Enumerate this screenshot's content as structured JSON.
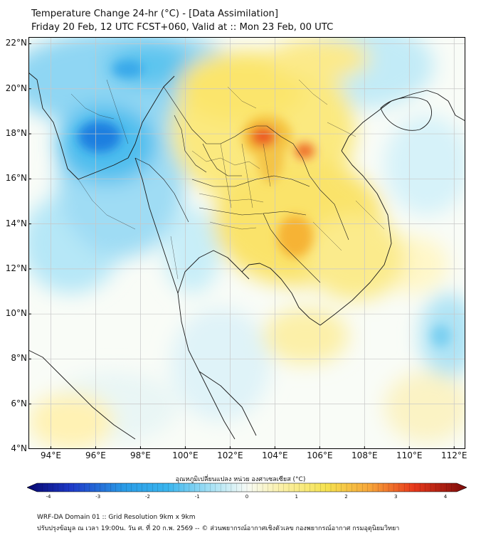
{
  "header": {
    "title_line1": "Temperature Change 24-hr (°C) - [Data Assimilation]",
    "title_line2": "Friday 20 Feb, 12 UTC FCST+060, Valid at :: Mon 23 Feb, 00 UTC"
  },
  "map": {
    "y_ticks": [
      "22°N",
      "20°N",
      "18°N",
      "16°N",
      "14°N",
      "12°N",
      "10°N",
      "8°N",
      "6°N",
      "4°N"
    ],
    "x_ticks": [
      "94°E",
      "96°E",
      "98°E",
      "100°E",
      "102°E",
      "104°E",
      "106°E",
      "108°E",
      "110°E",
      "112°E"
    ],
    "lon_range": [
      93,
      112.5
    ],
    "lat_range": [
      4,
      22.3
    ],
    "grid_lons": [
      94,
      96,
      98,
      100,
      102,
      104,
      106,
      108,
      110,
      112
    ],
    "grid_lats": [
      6,
      8,
      10,
      12,
      14,
      16,
      18,
      20,
      22
    ]
  },
  "colorbar": {
    "title": "อุณหภูมิเปลี่ยนแปลง หน่วย องศาเซลเซียส (°C)",
    "tick_labels": [
      "-4",
      "-3",
      "-2",
      "-1",
      "0",
      "1",
      "2",
      "3",
      "4"
    ],
    "colors": {
      "strong_cool": "#1f3ac8",
      "cool": "#3ab5ee",
      "neutral": "#f7fbf6",
      "warm": "#f5e250",
      "hot": "#e8391c",
      "extreme": "#7a0a0a"
    }
  },
  "footer": {
    "line1": "WRF-DA Domain 01 :: Grid Resolution 9km x 9km",
    "line2": "ปรับปรุงข้อมูล ณ เวลา 19:00น. วัน ศ. ที่ 20 ก.พ. 2569 -- © ส่วนพยากรณ์อากาศเชิงตัวเลข กองพยากรณ์อากาศ กรมอุตุนิยมวิทยา"
  }
}
